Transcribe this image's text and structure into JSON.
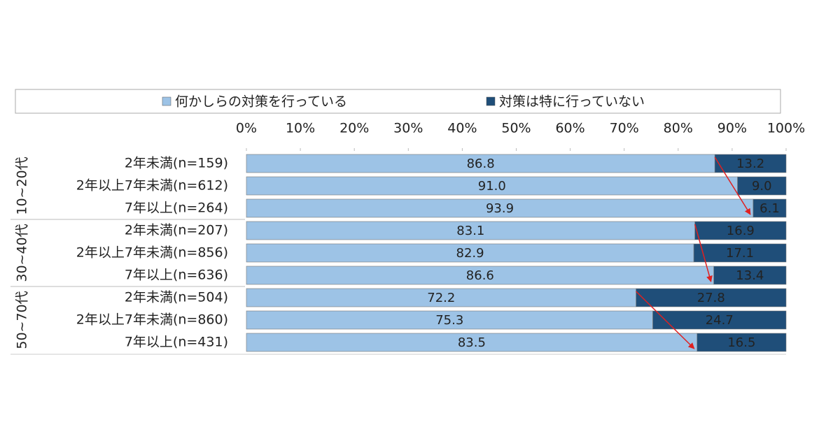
{
  "chart_data": {
    "type": "stacked-bar-horizontal",
    "categories": [
      "2年未満(n=159)",
      "2年以上7年未満(n=612)",
      "7年以上(n=264)",
      "2年未満(n=207)",
      "2年以上7年未満(n=856)",
      "7年以上(n=636)",
      "2年未満(n=504)",
      "2年以上7年未満(n=860)",
      "7年以上(n=431)"
    ],
    "groups": [
      {
        "label": "10~20代",
        "size": 3
      },
      {
        "label": "30~40代",
        "size": 3
      },
      {
        "label": "50~70代",
        "size": 3
      }
    ],
    "series": [
      {
        "name": "何かしらの対策を行っている",
        "color": "#9dc3e6",
        "values": [
          86.8,
          91.0,
          93.9,
          83.1,
          82.9,
          86.6,
          72.2,
          75.3,
          83.5
        ],
        "value_labels": [
          "86.8",
          "91.0",
          "93.9",
          "83.1",
          "82.9",
          "86.6",
          "72.2",
          "75.3",
          "83.5"
        ]
      },
      {
        "name": "対策は特に行っていない",
        "color": "#1f4e79",
        "values": [
          13.2,
          9.0,
          6.1,
          16.9,
          17.1,
          13.4,
          27.8,
          24.7,
          16.5
        ],
        "value_labels": [
          "13.2",
          "9.0",
          "6.1",
          "16.9",
          "17.1",
          "13.4",
          "27.8",
          "24.7",
          "16.5"
        ]
      }
    ],
    "xlim": [
      0,
      100
    ],
    "xticks": [
      {
        "value": 0,
        "label": "0%"
      },
      {
        "value": 10,
        "label": "10%"
      },
      {
        "value": 20,
        "label": "20%"
      },
      {
        "value": 30,
        "label": "30%"
      },
      {
        "value": 40,
        "label": "40%"
      },
      {
        "value": 50,
        "label": "50%"
      },
      {
        "value": 60,
        "label": "60%"
      },
      {
        "value": 70,
        "label": "70%"
      },
      {
        "value": 80,
        "label": "80%"
      },
      {
        "value": 90,
        "label": "90%"
      },
      {
        "value": 100,
        "label": "100%"
      }
    ],
    "legend": "top"
  }
}
